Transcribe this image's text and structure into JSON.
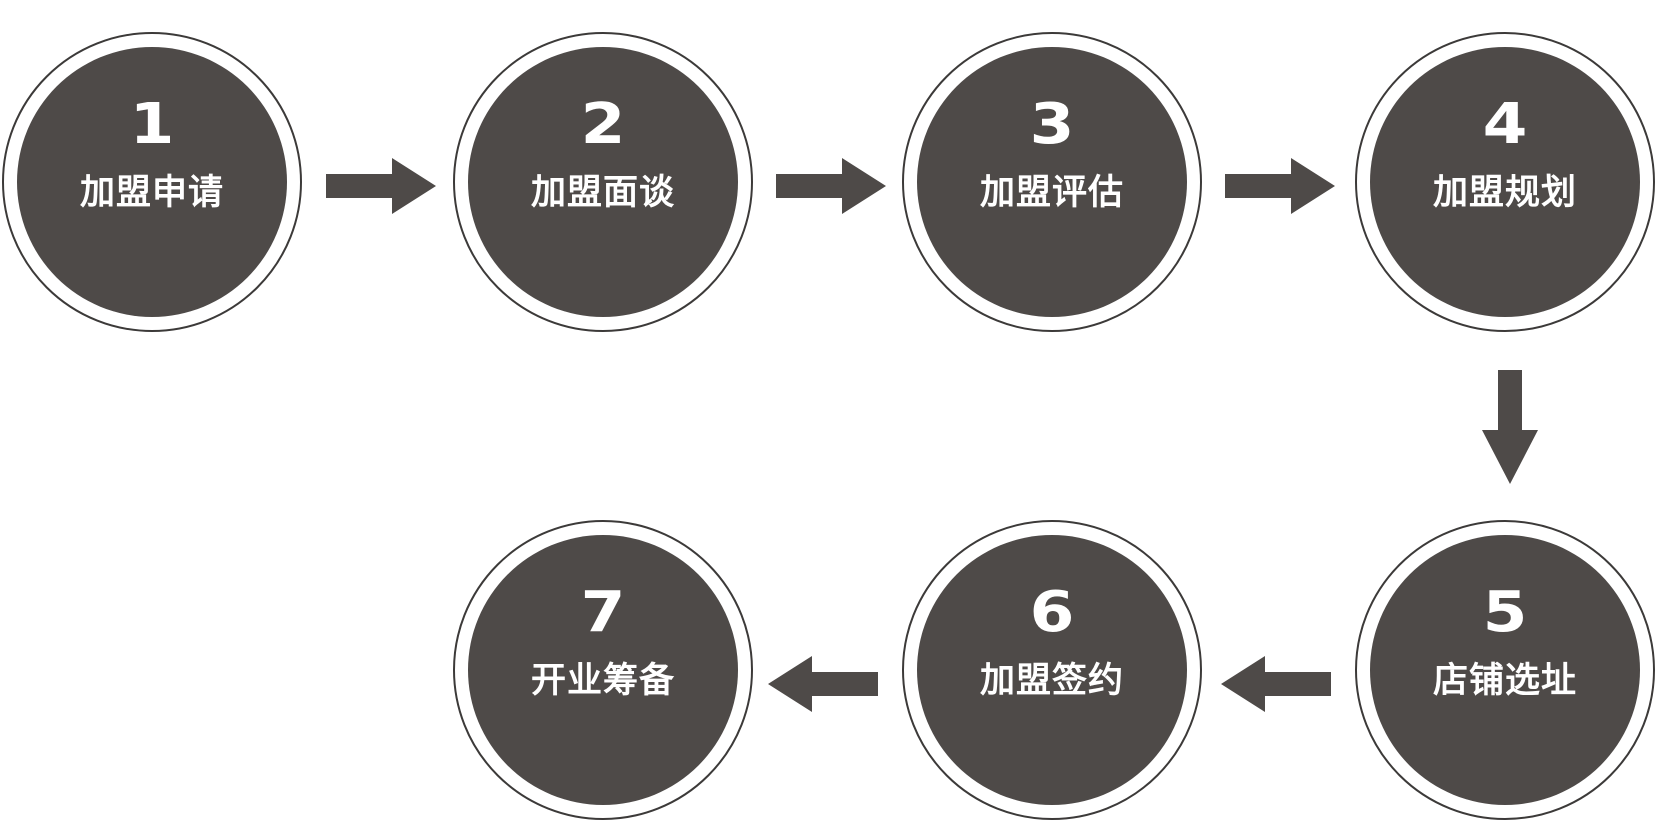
{
  "colors": {
    "disc_fill": "#4e4a48",
    "ring_stroke": "#3c3a39",
    "arrow_fill": "#4e4a48",
    "text": "#ffffff"
  },
  "steps": [
    {
      "number": "1",
      "label": "加盟申请"
    },
    {
      "number": "2",
      "label": "加盟面谈"
    },
    {
      "number": "3",
      "label": "加盟评估"
    },
    {
      "number": "4",
      "label": "加盟规划"
    },
    {
      "number": "5",
      "label": "店铺选址"
    },
    {
      "number": "6",
      "label": "加盟签约"
    },
    {
      "number": "7",
      "label": "开业筹备"
    }
  ],
  "arrows": [
    {
      "from": "1",
      "to": "2",
      "direction": "right"
    },
    {
      "from": "2",
      "to": "3",
      "direction": "right"
    },
    {
      "from": "3",
      "to": "4",
      "direction": "right"
    },
    {
      "from": "4",
      "to": "5",
      "direction": "down"
    },
    {
      "from": "5",
      "to": "6",
      "direction": "left"
    },
    {
      "from": "6",
      "to": "7",
      "direction": "left"
    }
  ]
}
